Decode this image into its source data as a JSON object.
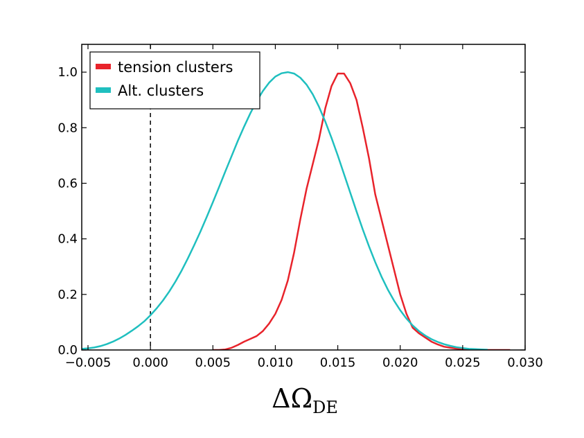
{
  "chart_data": {
    "type": "line",
    "title": "",
    "xlabel": "ΔΩ",
    "xlabel_subscript": "DE",
    "ylabel": "",
    "xlim": [
      -0.0055,
      0.03
    ],
    "ylim": [
      0.0,
      1.1
    ],
    "xticks": [
      -0.005,
      0.0,
      0.005,
      0.01,
      0.015,
      0.02,
      0.025,
      0.03
    ],
    "xtick_labels": [
      "−0.005",
      "0.000",
      "0.005",
      "0.010",
      "0.015",
      "0.020",
      "0.025",
      "0.030"
    ],
    "yticks": [
      0.0,
      0.2,
      0.4,
      0.6,
      0.8,
      1.0
    ],
    "ytick_labels": [
      "0.0",
      "0.2",
      "0.4",
      "0.6",
      "0.8",
      "1.0"
    ],
    "grid": false,
    "legend_position": "top-left",
    "reference_line": {
      "x": 0.0,
      "style": "dashed",
      "color": "#000000"
    },
    "series": [
      {
        "name": "tension clusters",
        "color": "#e8232b",
        "x": [
          0.005,
          0.0055,
          0.006,
          0.0065,
          0.007,
          0.0075,
          0.008,
          0.0085,
          0.009,
          0.0095,
          0.01,
          0.0105,
          0.011,
          0.0115,
          0.012,
          0.0125,
          0.013,
          0.0135,
          0.014,
          0.0145,
          0.015,
          0.0155,
          0.016,
          0.0165,
          0.017,
          0.0175,
          0.018,
          0.0185,
          0.019,
          0.0195,
          0.02,
          0.0205,
          0.021,
          0.0215,
          0.022,
          0.0225,
          0.023,
          0.0235,
          0.024,
          0.0245,
          0.025,
          0.0255,
          0.026,
          0.0265,
          0.027,
          0.0275,
          0.028,
          0.0285,
          0.0288
        ],
        "y": [
          0.0,
          0.0,
          0.002,
          0.008,
          0.018,
          0.03,
          0.04,
          0.05,
          0.068,
          0.095,
          0.13,
          0.18,
          0.25,
          0.35,
          0.47,
          0.58,
          0.67,
          0.76,
          0.87,
          0.95,
          0.995,
          0.995,
          0.96,
          0.9,
          0.8,
          0.69,
          0.56,
          0.47,
          0.38,
          0.29,
          0.2,
          0.13,
          0.08,
          0.06,
          0.045,
          0.03,
          0.02,
          0.012,
          0.008,
          0.005,
          0.003,
          0.002,
          0.001,
          0.0,
          0.0,
          0.0,
          0.0,
          0.0,
          0.0
        ]
      },
      {
        "name": "Alt. clusters",
        "color": "#1fbfbf",
        "x": [
          -0.0055,
          -0.005,
          -0.0045,
          -0.004,
          -0.0035,
          -0.003,
          -0.0025,
          -0.002,
          -0.0015,
          -0.001,
          -0.0005,
          0.0,
          0.0005,
          0.001,
          0.0015,
          0.002,
          0.0025,
          0.003,
          0.0035,
          0.004,
          0.0045,
          0.005,
          0.0055,
          0.006,
          0.0065,
          0.007,
          0.0075,
          0.008,
          0.0085,
          0.009,
          0.0095,
          0.01,
          0.0105,
          0.011,
          0.0115,
          0.012,
          0.0125,
          0.013,
          0.0135,
          0.014,
          0.0145,
          0.015,
          0.0155,
          0.016,
          0.0165,
          0.017,
          0.0175,
          0.018,
          0.0185,
          0.019,
          0.0195,
          0.02,
          0.0205,
          0.021,
          0.0215,
          0.022,
          0.0225,
          0.023,
          0.0235,
          0.024,
          0.0245,
          0.025,
          0.0255,
          0.026,
          0.0265,
          0.027
        ],
        "y": [
          0.004,
          0.006,
          0.009,
          0.014,
          0.021,
          0.03,
          0.041,
          0.054,
          0.069,
          0.085,
          0.103,
          0.125,
          0.15,
          0.178,
          0.21,
          0.246,
          0.286,
          0.33,
          0.377,
          0.426,
          0.478,
          0.532,
          0.587,
          0.643,
          0.698,
          0.753,
          0.804,
          0.852,
          0.895,
          0.932,
          0.962,
          0.984,
          0.996,
          1.0,
          0.995,
          0.98,
          0.955,
          0.92,
          0.875,
          0.822,
          0.763,
          0.7,
          0.633,
          0.566,
          0.499,
          0.434,
          0.373,
          0.316,
          0.264,
          0.218,
          0.178,
          0.143,
          0.113,
          0.088,
          0.068,
          0.052,
          0.039,
          0.029,
          0.021,
          0.015,
          0.01,
          0.007,
          0.004,
          0.003,
          0.002,
          0.001
        ]
      }
    ]
  }
}
